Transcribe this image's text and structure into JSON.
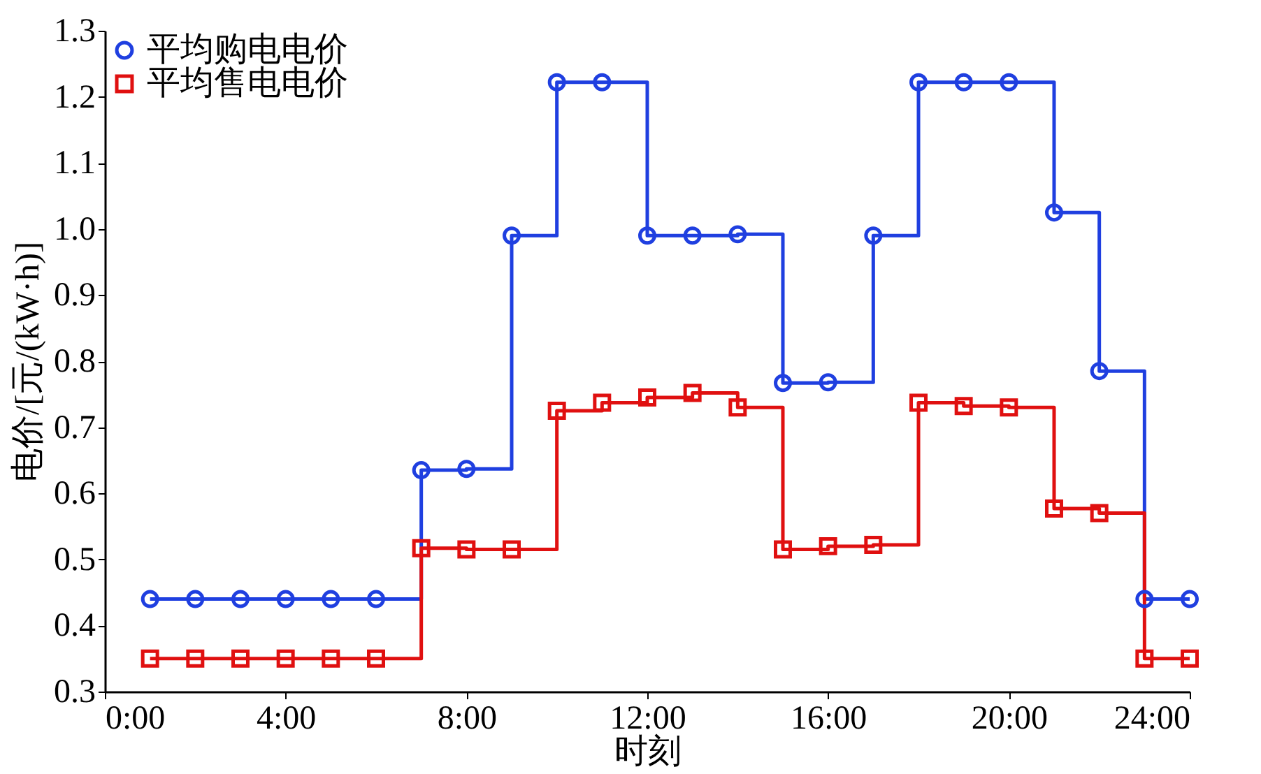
{
  "chart_data": {
    "type": "step",
    "xlabel": "时刻",
    "ylabel": "电价/[元/(kW·h)]",
    "x": [
      1,
      2,
      3,
      4,
      5,
      6,
      7,
      8,
      9,
      10,
      11,
      12,
      13,
      14,
      15,
      16,
      17,
      18,
      19,
      20,
      21,
      22,
      23,
      24
    ],
    "series": [
      {
        "name": "平均购电电价",
        "color": "#1f3fe0",
        "marker": "circle",
        "values": [
          0.44,
          0.44,
          0.44,
          0.44,
          0.44,
          0.44,
          0.635,
          0.637,
          0.99,
          1.222,
          1.222,
          0.99,
          0.99,
          0.992,
          0.767,
          0.768,
          0.99,
          1.222,
          1.222,
          1.222,
          1.025,
          0.785,
          0.44,
          0.44
        ]
      },
      {
        "name": "平均售电电价",
        "color": "#e01010",
        "marker": "square",
        "values": [
          0.35,
          0.35,
          0.35,
          0.35,
          0.35,
          0.35,
          0.517,
          0.515,
          0.515,
          0.725,
          0.737,
          0.745,
          0.752,
          0.73,
          0.515,
          0.52,
          0.522,
          0.737,
          0.732,
          0.73,
          0.577,
          0.57,
          0.35,
          0.35
        ]
      }
    ],
    "xlim": [
      0,
      24
    ],
    "xticks": [
      {
        "value": 0,
        "label": "0:00"
      },
      {
        "value": 4,
        "label": "4:00"
      },
      {
        "value": 8,
        "label": "8:00"
      },
      {
        "value": 12,
        "label": "12:00"
      },
      {
        "value": 16,
        "label": "16:00"
      },
      {
        "value": 20,
        "label": "20:00"
      },
      {
        "value": 24,
        "label": "24:00"
      }
    ],
    "ylim": [
      0.3,
      1.3
    ],
    "yticks": [
      0.3,
      0.4,
      0.5,
      0.6,
      0.7,
      0.8,
      0.9,
      {
        "value": 1,
        "label": "1.0"
      },
      1.1,
      1.2,
      1.3
    ],
    "legend": "top left",
    "grid": false,
    "line_style": "solid"
  }
}
